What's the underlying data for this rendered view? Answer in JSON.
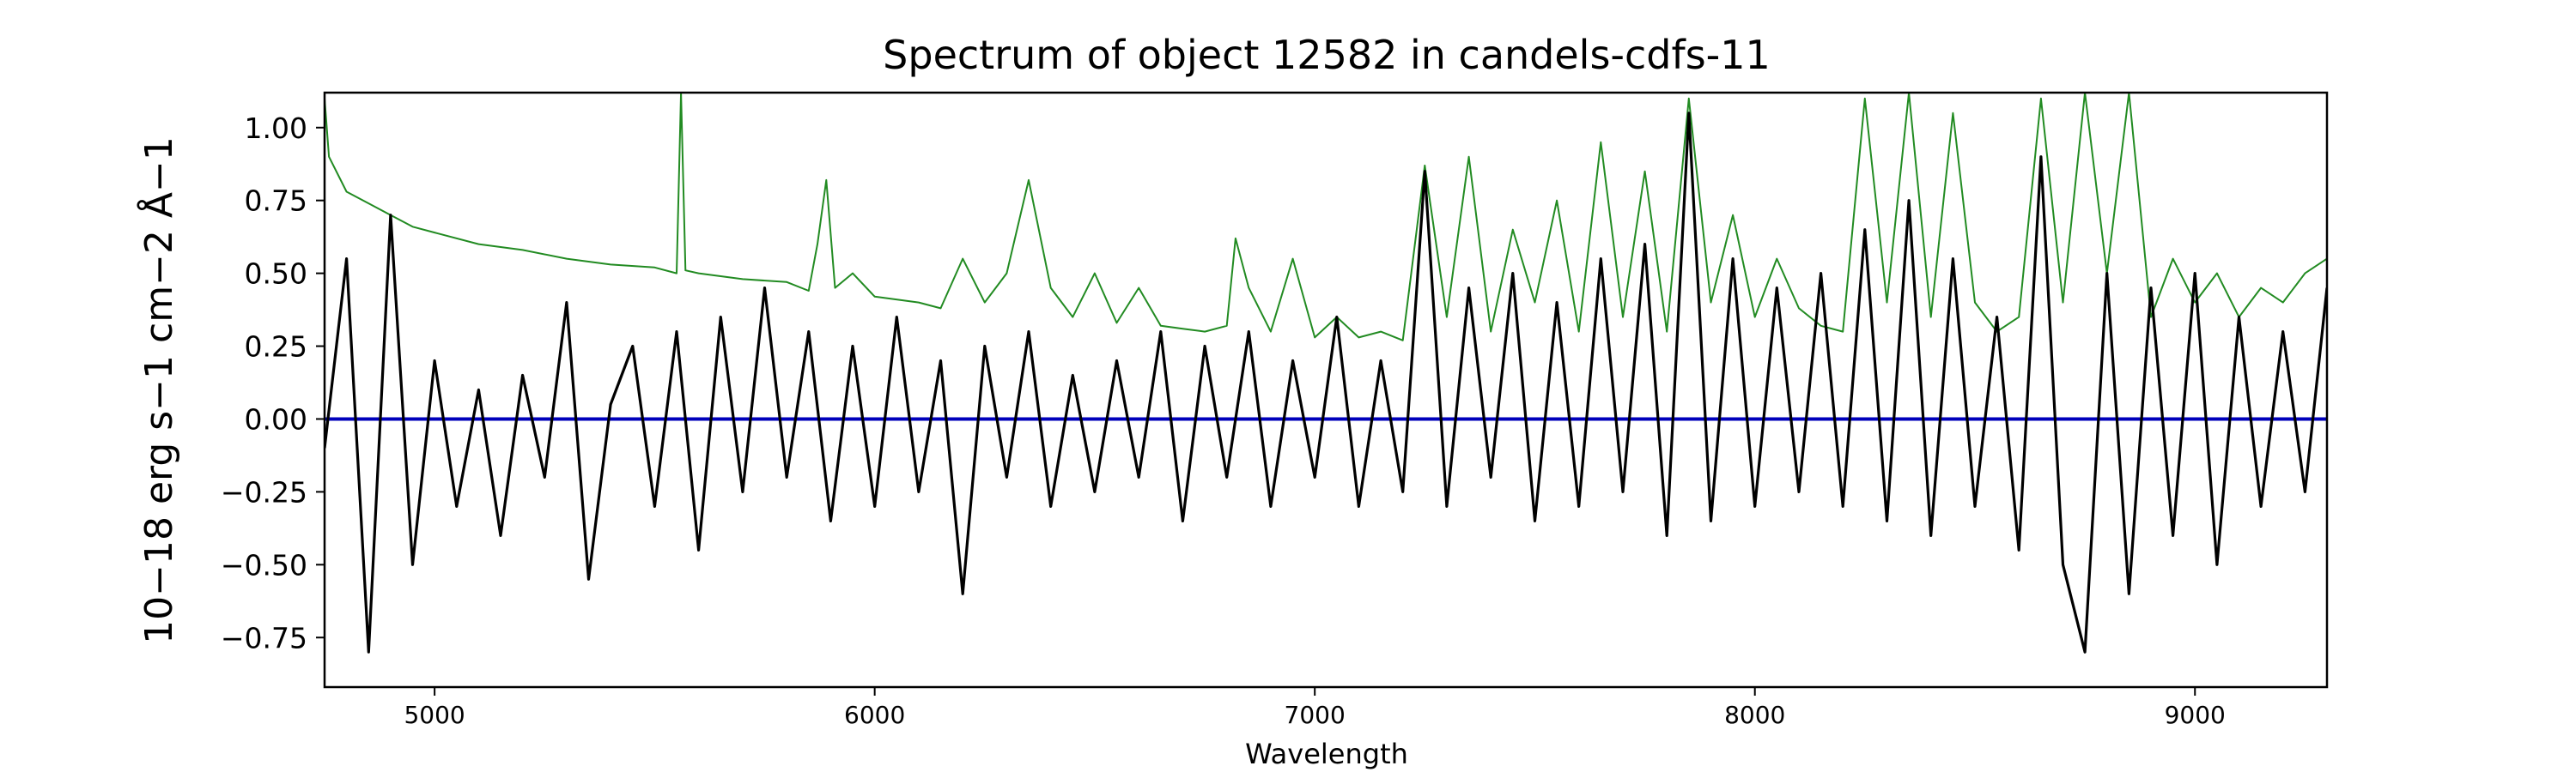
{
  "chart_data": {
    "type": "line",
    "title": "Spectrum of object 12582 in candels-cdfs-11",
    "xlabel": "Wavelength",
    "ylabel": "10−18 erg s−1 cm−2 Å−1",
    "xlim": [
      4750,
      9300
    ],
    "ylim": [
      -0.92,
      1.12
    ],
    "x_ticks": [
      5000,
      6000,
      7000,
      8000,
      9000
    ],
    "x_tick_labels": [
      "5000",
      "6000",
      "7000",
      "8000",
      "9000"
    ],
    "y_ticks": [
      -0.75,
      -0.5,
      -0.25,
      0.0,
      0.25,
      0.5,
      0.75,
      1.0
    ],
    "y_tick_labels": [
      "−0.75",
      "−0.50",
      "−0.25",
      "0.00",
      "0.25",
      "0.50",
      "0.75",
      "1.00"
    ],
    "grid": false,
    "legend": null,
    "series": [
      {
        "role": "flux",
        "color": "#000000",
        "x": [
          4750,
          4800,
          4850,
          4900,
          4950,
          5000,
          5050,
          5100,
          5150,
          5200,
          5250,
          5300,
          5350,
          5400,
          5450,
          5500,
          5550,
          5600,
          5650,
          5700,
          5750,
          5800,
          5850,
          5900,
          5950,
          6000,
          6050,
          6100,
          6150,
          6200,
          6250,
          6300,
          6350,
          6400,
          6450,
          6500,
          6550,
          6600,
          6650,
          6700,
          6750,
          6800,
          6850,
          6900,
          6950,
          7000,
          7050,
          7100,
          7150,
          7200,
          7250,
          7300,
          7350,
          7400,
          7450,
          7500,
          7550,
          7600,
          7650,
          7700,
          7750,
          7800,
          7850,
          7900,
          7950,
          8000,
          8050,
          8100,
          8150,
          8200,
          8250,
          8300,
          8350,
          8400,
          8450,
          8500,
          8550,
          8600,
          8650,
          8700,
          8750,
          8800,
          8850,
          8900,
          8950,
          9000,
          9050,
          9100,
          9150,
          9200,
          9250,
          9300
        ],
        "y": [
          -0.1,
          0.55,
          -0.8,
          0.7,
          -0.5,
          0.2,
          -0.3,
          0.1,
          -0.4,
          0.15,
          -0.2,
          0.4,
          -0.55,
          0.05,
          0.25,
          -0.3,
          0.3,
          -0.45,
          0.35,
          -0.25,
          0.45,
          -0.2,
          0.3,
          -0.35,
          0.25,
          -0.3,
          0.35,
          -0.25,
          0.2,
          -0.6,
          0.25,
          -0.2,
          0.3,
          -0.3,
          0.15,
          -0.25,
          0.2,
          -0.2,
          0.3,
          -0.35,
          0.25,
          -0.2,
          0.3,
          -0.3,
          0.2,
          -0.2,
          0.35,
          -0.3,
          0.2,
          -0.25,
          0.85,
          -0.3,
          0.45,
          -0.2,
          0.5,
          -0.35,
          0.4,
          -0.3,
          0.55,
          -0.25,
          0.6,
          -0.4,
          1.05,
          -0.35,
          0.55,
          -0.3,
          0.45,
          -0.25,
          0.5,
          -0.3,
          0.65,
          -0.35,
          0.75,
          -0.4,
          0.55,
          -0.3,
          0.35,
          -0.45,
          0.9,
          -0.5,
          -0.8,
          0.5,
          -0.6,
          0.45,
          -0.4,
          0.5,
          -0.5,
          0.35,
          -0.3,
          0.3,
          -0.25,
          0.45
        ]
      },
      {
        "role": "error",
        "color": "#228b22",
        "x": [
          4750,
          4760,
          4800,
          4850,
          4900,
          4950,
          5000,
          5100,
          5200,
          5300,
          5400,
          5500,
          5550,
          5560,
          5570,
          5600,
          5700,
          5800,
          5850,
          5870,
          5890,
          5910,
          5950,
          6000,
          6100,
          6150,
          6200,
          6250,
          6300,
          6350,
          6400,
          6450,
          6500,
          6550,
          6600,
          6650,
          6700,
          6750,
          6800,
          6820,
          6850,
          6900,
          6950,
          7000,
          7050,
          7100,
          7150,
          7200,
          7250,
          7300,
          7350,
          7400,
          7450,
          7500,
          7550,
          7600,
          7650,
          7700,
          7750,
          7800,
          7850,
          7900,
          7950,
          8000,
          8050,
          8100,
          8150,
          8200,
          8250,
          8300,
          8350,
          8400,
          8450,
          8500,
          8550,
          8600,
          8650,
          8700,
          8750,
          8800,
          8850,
          8900,
          8950,
          9000,
          9050,
          9100,
          9150,
          9200,
          9250,
          9300
        ],
        "y": [
          1.1,
          0.9,
          0.78,
          0.74,
          0.7,
          0.66,
          0.64,
          0.6,
          0.58,
          0.55,
          0.53,
          0.52,
          0.5,
          1.12,
          0.51,
          0.5,
          0.48,
          0.47,
          0.44,
          0.6,
          0.82,
          0.45,
          0.5,
          0.42,
          0.4,
          0.38,
          0.55,
          0.4,
          0.5,
          0.82,
          0.45,
          0.35,
          0.5,
          0.33,
          0.45,
          0.32,
          0.31,
          0.3,
          0.32,
          0.62,
          0.45,
          0.3,
          0.55,
          0.28,
          0.35,
          0.28,
          0.3,
          0.27,
          0.87,
          0.35,
          0.9,
          0.3,
          0.65,
          0.4,
          0.75,
          0.3,
          0.95,
          0.35,
          0.85,
          0.3,
          1.1,
          0.4,
          0.7,
          0.35,
          0.55,
          0.38,
          0.32,
          0.3,
          1.1,
          0.4,
          1.12,
          0.35,
          1.05,
          0.4,
          0.3,
          0.35,
          1.1,
          0.4,
          1.12,
          0.5,
          1.12,
          0.35,
          0.55,
          0.4,
          0.5,
          0.35,
          0.45,
          0.4,
          0.5,
          0.55
        ]
      },
      {
        "role": "model",
        "color": "#0000bb",
        "x": [
          4750,
          9300
        ],
        "y": [
          0.0,
          0.0
        ]
      }
    ]
  }
}
